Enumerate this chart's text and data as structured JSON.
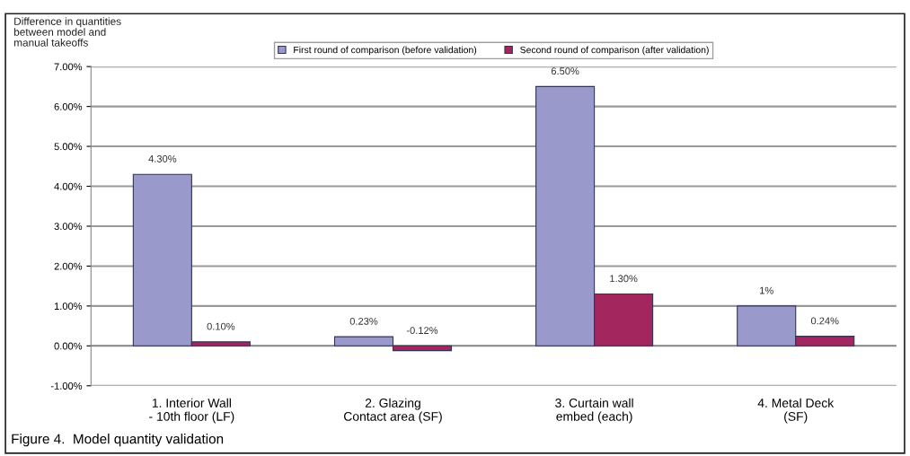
{
  "chart_data": {
    "type": "bar",
    "ylabel": "Difference in quantities\nbetween model and\nmanual takeoffs",
    "categories": [
      "1. Interior Wall\n- 10th floor (LF)",
      "2. Glazing\nContact area (SF)",
      "3. Curtain wall\nembed (each)",
      "4. Metal Deck\n(SF)"
    ],
    "series": [
      {
        "name": "First round of comparison (before validation)",
        "color": "#9999cc",
        "values": [
          4.3,
          0.23,
          6.5,
          1
        ],
        "value_labels": [
          "4.30%",
          "0.23%",
          "6.50%",
          "1%"
        ]
      },
      {
        "name": "Second round of comparison (after validation)",
        "color": "#a3265e",
        "values": [
          0.1,
          -0.12,
          1.3,
          0.24
        ],
        "value_labels": [
          "0.10%",
          "-0.12%",
          "1.30%",
          "0.24%"
        ]
      }
    ],
    "ylim": [
      -1,
      7
    ],
    "yticks": [
      {
        "value": -1,
        "label": "-1.00%"
      },
      {
        "value": 0,
        "label": "0.00%"
      },
      {
        "value": 1,
        "label": "1.00%"
      },
      {
        "value": 2,
        "label": "2.00%"
      },
      {
        "value": 3,
        "label": "3.00%"
      },
      {
        "value": 4,
        "label": "4.00%"
      },
      {
        "value": 5,
        "label": "5.00%"
      },
      {
        "value": 6,
        "label": "6.00%"
      },
      {
        "value": 7,
        "label": "7.00%"
      }
    ],
    "grid": "y",
    "legend": "top",
    "annotations": [
      "Figure 4.  Model quantity validation"
    ]
  }
}
